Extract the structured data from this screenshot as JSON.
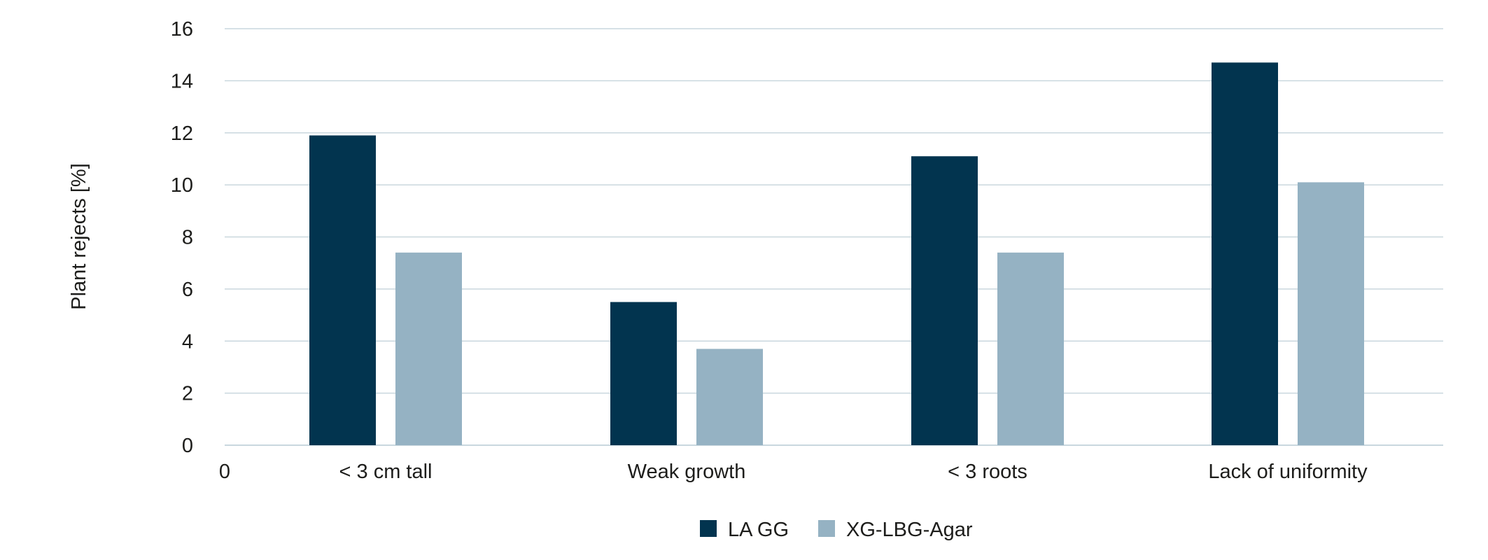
{
  "chart_data": {
    "type": "bar",
    "title": "",
    "xlabel": "",
    "ylabel": "Plant rejects [%]",
    "ylim": [
      0,
      16
    ],
    "yticks": [
      0,
      2,
      4,
      6,
      8,
      10,
      12,
      14,
      16
    ],
    "grid": true,
    "x_origin_label": "0",
    "categories": [
      "< 3 cm tall",
      "Weak growth",
      "< 3 roots",
      "Lack of uniformity"
    ],
    "series": [
      {
        "name": "LA GG",
        "color": "#02344f",
        "values": [
          11.9,
          5.5,
          11.1,
          14.7
        ]
      },
      {
        "name": "XG-LBG-Agar",
        "color": "#95b2c3",
        "values": [
          7.4,
          3.7,
          7.4,
          10.1
        ]
      }
    ],
    "legend_position": "bottom-center"
  }
}
